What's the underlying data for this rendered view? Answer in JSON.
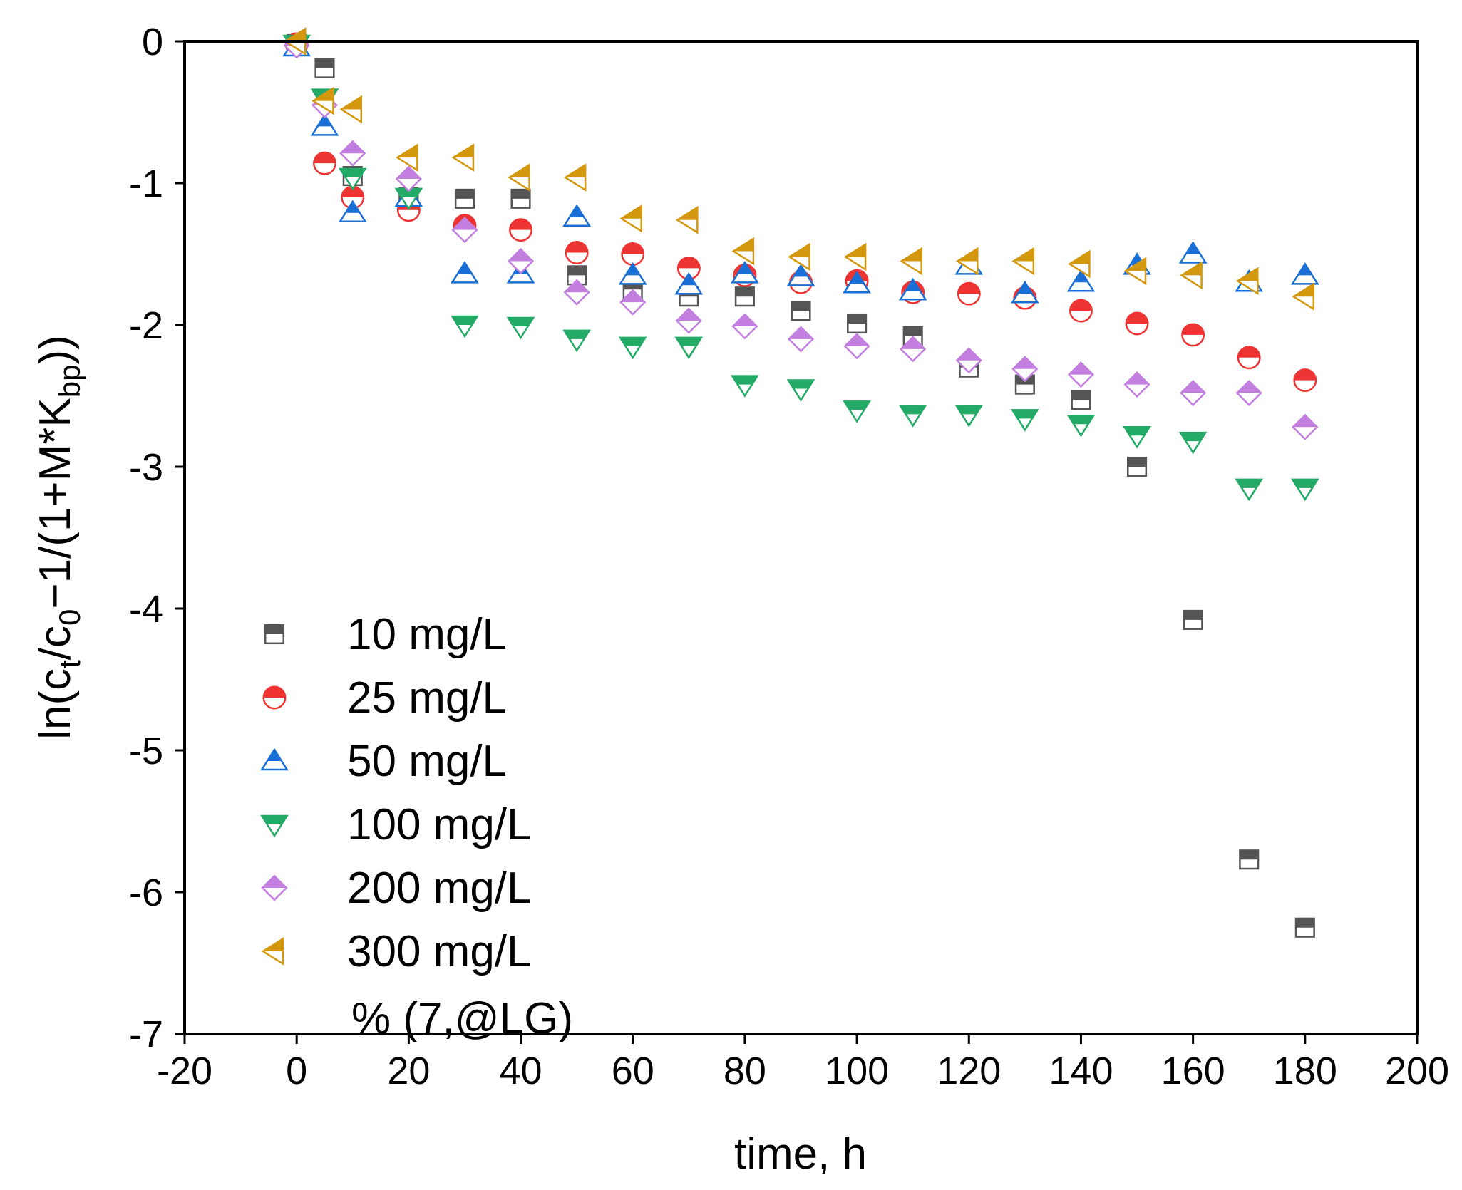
{
  "chart_data": {
    "type": "scatter",
    "title": "",
    "xlabel": "time, h",
    "ylabel": {
      "text": "ln(c",
      "sub1": "t",
      "mid1": "/c",
      "sub2": "0",
      "mid2": "−1/(1+M*K",
      "sub3": "bp",
      "end": "))"
    },
    "xlim": [
      -20,
      200
    ],
    "ylim": [
      -7,
      0
    ],
    "xticks": [
      -20,
      0,
      20,
      40,
      60,
      80,
      100,
      120,
      140,
      160,
      180,
      200
    ],
    "yticks": [
      0,
      -1,
      -2,
      -3,
      -4,
      -5,
      -6,
      -7
    ],
    "grid": false,
    "legend_position": "bottom-left",
    "legend_extra_text": "% (7,@LG)",
    "series": [
      {
        "name": "10 mg/L",
        "marker": "square",
        "color": "#555555",
        "x": [
          0,
          5,
          10,
          20,
          30,
          40,
          50,
          60,
          70,
          80,
          90,
          100,
          110,
          120,
          130,
          140,
          150,
          160,
          170,
          180
        ],
        "y": [
          -0.02,
          -0.19,
          -0.95,
          -1.1,
          -1.11,
          -1.11,
          -1.65,
          -1.75,
          -1.8,
          -1.8,
          -1.9,
          -1.99,
          -2.08,
          -2.3,
          -2.42,
          -2.53,
          -3.0,
          -4.08,
          -5.77,
          -6.25
        ]
      },
      {
        "name": "25 mg/L",
        "marker": "circle",
        "color": "#ee3333",
        "x": [
          0,
          5,
          10,
          20,
          30,
          40,
          50,
          60,
          70,
          80,
          90,
          100,
          110,
          120,
          130,
          140,
          150,
          160,
          170,
          180
        ],
        "y": [
          -0.02,
          -0.86,
          -1.1,
          -1.19,
          -1.3,
          -1.33,
          -1.49,
          -1.5,
          -1.6,
          -1.65,
          -1.7,
          -1.69,
          -1.77,
          -1.78,
          -1.81,
          -1.9,
          -1.99,
          -2.07,
          -2.23,
          -2.39
        ]
      },
      {
        "name": "50 mg/L",
        "marker": "triangle-up",
        "color": "#1a6fd6",
        "x": [
          0,
          5,
          10,
          20,
          30,
          40,
          50,
          60,
          70,
          80,
          90,
          100,
          110,
          120,
          130,
          140,
          150,
          160,
          170,
          180
        ],
        "y": [
          -0.04,
          -0.6,
          -1.21,
          -1.1,
          -1.64,
          -1.64,
          -1.24,
          -1.65,
          -1.72,
          -1.64,
          -1.66,
          -1.71,
          -1.76,
          -1.58,
          -1.78,
          -1.7,
          -1.58,
          -1.5,
          -1.7,
          -1.65
        ]
      },
      {
        "name": "100 mg/L",
        "marker": "triangle-down",
        "color": "#22aa66",
        "x": [
          0,
          5,
          10,
          20,
          30,
          40,
          50,
          60,
          70,
          80,
          90,
          100,
          110,
          120,
          130,
          140,
          150,
          160,
          170,
          180
        ],
        "y": [
          -0.02,
          -0.4,
          -0.96,
          -1.1,
          -2.0,
          -2.01,
          -2.1,
          -2.15,
          -2.15,
          -2.42,
          -2.45,
          -2.6,
          -2.63,
          -2.63,
          -2.66,
          -2.7,
          -2.78,
          -2.82,
          -3.15,
          -3.15
        ]
      },
      {
        "name": "200 mg/L",
        "marker": "diamond",
        "color": "#c27fe0",
        "x": [
          0,
          5,
          10,
          20,
          30,
          40,
          50,
          60,
          70,
          80,
          90,
          100,
          110,
          120,
          130,
          140,
          150,
          160,
          170,
          180
        ],
        "y": [
          -0.03,
          -0.45,
          -0.79,
          -0.97,
          -1.33,
          -1.55,
          -1.77,
          -1.84,
          -1.97,
          -2.01,
          -2.1,
          -2.15,
          -2.17,
          -2.25,
          -2.31,
          -2.35,
          -2.42,
          -2.48,
          -2.48,
          -2.72
        ]
      },
      {
        "name": "300 mg/L",
        "marker": "triangle-left",
        "color": "#d4980f",
        "x": [
          0,
          5,
          10,
          20,
          30,
          40,
          50,
          60,
          70,
          80,
          90,
          100,
          110,
          120,
          130,
          140,
          150,
          160,
          170,
          180
        ],
        "y": [
          0.0,
          -0.42,
          -0.48,
          -0.82,
          -0.82,
          -0.96,
          -0.96,
          -1.25,
          -1.26,
          -1.48,
          -1.52,
          -1.52,
          -1.55,
          -1.55,
          -1.55,
          -1.57,
          -1.62,
          -1.65,
          -1.69,
          -1.8
        ]
      }
    ]
  }
}
